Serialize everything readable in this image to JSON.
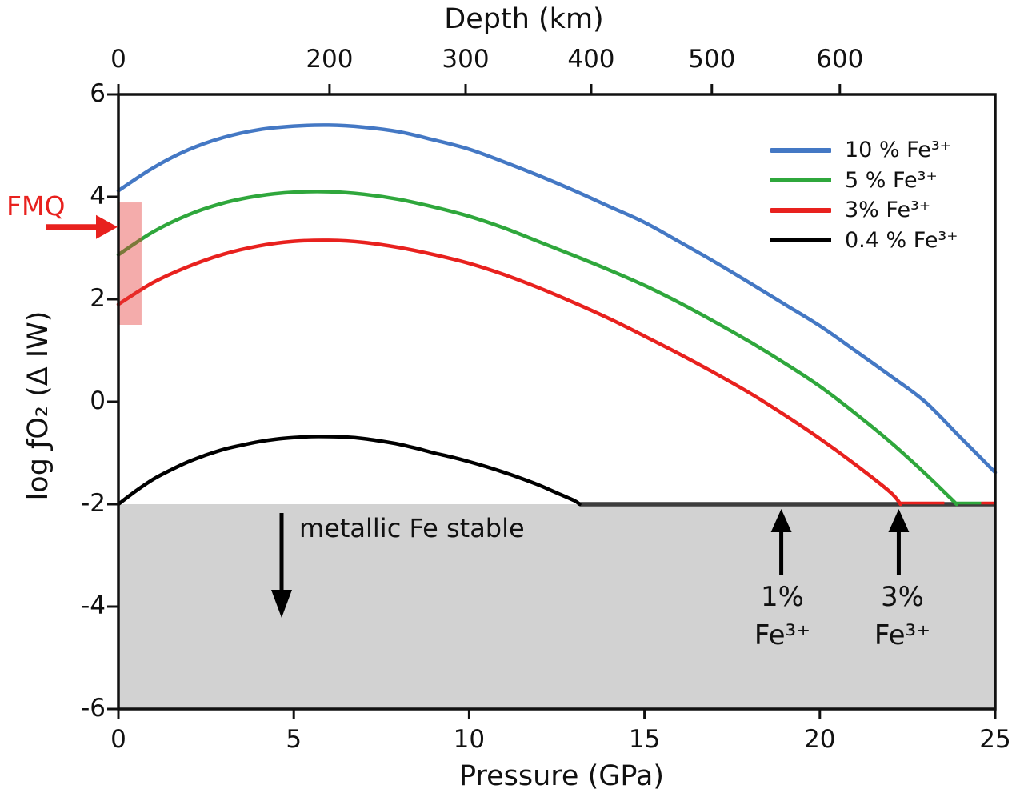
{
  "figure": {
    "background": "#ffffff",
    "axis_color": "#111111"
  },
  "annotations": {
    "fmq": {
      "label": "FMQ",
      "color": "#e8211e",
      "arrow_at_diw": 3.41
    },
    "metallic": {
      "label": "metallic Fe stable"
    },
    "arrow_1pct": {
      "line1": "1%",
      "line2": "Fe³⁺",
      "x_gpa": 18.9
    },
    "arrow_3pct": {
      "line1": "3%",
      "line2": "Fe³⁺",
      "x_gpa": 22.25
    }
  },
  "chart_data": {
    "type": "line",
    "top_axis": {
      "title": "Depth (km)",
      "ticks": [
        {
          "label": "0",
          "gpa": 0
        },
        {
          "label": "200",
          "gpa": 6.02
        },
        {
          "label": "300",
          "gpa": 9.9
        },
        {
          "label": "400",
          "gpa": 13.48
        },
        {
          "label": "500",
          "gpa": 16.92
        },
        {
          "label": "600",
          "gpa": 20.57
        }
      ]
    },
    "x_axis": {
      "title": "Pressure (GPa)",
      "range": [
        0,
        25
      ],
      "ticks": [
        "0",
        "5",
        "10",
        "15",
        "20",
        "25"
      ]
    },
    "y_axis": {
      "title": "log ƒO₂ (Δ IW)",
      "range": [
        -6,
        6
      ],
      "ticks": [
        "6",
        "4",
        "2",
        "0",
        "-2",
        "-4",
        "-6"
      ]
    },
    "series": [
      {
        "name": "10 % Fe³⁺",
        "color": "#4478c4",
        "points": [
          [
            0,
            4.12
          ],
          [
            1,
            4.57
          ],
          [
            2,
            4.92
          ],
          [
            3,
            5.16
          ],
          [
            4,
            5.31
          ],
          [
            5,
            5.38
          ],
          [
            6,
            5.4
          ],
          [
            7,
            5.36
          ],
          [
            8,
            5.27
          ],
          [
            9,
            5.11
          ],
          [
            10,
            4.93
          ],
          [
            11,
            4.68
          ],
          [
            12,
            4.41
          ],
          [
            13,
            4.12
          ],
          [
            14,
            3.81
          ],
          [
            15,
            3.5
          ],
          [
            16,
            3.12
          ],
          [
            17,
            2.73
          ],
          [
            18,
            2.32
          ],
          [
            19,
            1.9
          ],
          [
            20,
            1.48
          ],
          [
            21,
            1.0
          ],
          [
            22,
            0.51
          ],
          [
            23,
            0.0
          ],
          [
            24,
            -0.69
          ],
          [
            25,
            -1.38
          ]
        ]
      },
      {
        "name": "5 % Fe³⁺",
        "color": "#2fa73c",
        "points": [
          [
            0,
            2.87
          ],
          [
            1,
            3.32
          ],
          [
            2,
            3.65
          ],
          [
            3,
            3.88
          ],
          [
            4,
            4.02
          ],
          [
            5,
            4.09
          ],
          [
            6,
            4.1
          ],
          [
            7,
            4.05
          ],
          [
            8,
            3.95
          ],
          [
            9,
            3.8
          ],
          [
            10,
            3.62
          ],
          [
            11,
            3.39
          ],
          [
            12,
            3.12
          ],
          [
            13,
            2.85
          ],
          [
            14,
            2.57
          ],
          [
            15,
            2.27
          ],
          [
            16,
            1.93
          ],
          [
            17,
            1.56
          ],
          [
            18,
            1.17
          ],
          [
            19,
            0.75
          ],
          [
            20,
            0.3
          ],
          [
            21,
            -0.22
          ],
          [
            22,
            -0.78
          ],
          [
            23,
            -1.4
          ],
          [
            23.9,
            -2.0
          ]
        ]
      },
      {
        "name": "3% Fe³⁺",
        "color": "#e8211e",
        "points": [
          [
            0,
            1.9
          ],
          [
            1,
            2.33
          ],
          [
            2,
            2.64
          ],
          [
            3,
            2.88
          ],
          [
            4,
            3.04
          ],
          [
            5,
            3.13
          ],
          [
            6,
            3.15
          ],
          [
            7,
            3.11
          ],
          [
            8,
            3.01
          ],
          [
            9,
            2.87
          ],
          [
            10,
            2.7
          ],
          [
            11,
            2.48
          ],
          [
            12,
            2.22
          ],
          [
            13,
            1.93
          ],
          [
            14,
            1.62
          ],
          [
            15,
            1.28
          ],
          [
            16,
            0.93
          ],
          [
            17,
            0.56
          ],
          [
            18,
            0.17
          ],
          [
            19,
            -0.26
          ],
          [
            20,
            -0.72
          ],
          [
            21,
            -1.22
          ],
          [
            22,
            -1.76
          ],
          [
            22.3,
            -2.0
          ]
        ]
      },
      {
        "name": "0.4 % Fe³⁺",
        "color": "#000000",
        "points": [
          [
            0,
            -2.0
          ],
          [
            0.5,
            -1.74
          ],
          [
            1,
            -1.51
          ],
          [
            1.5,
            -1.33
          ],
          [
            2,
            -1.17
          ],
          [
            2.5,
            -1.04
          ],
          [
            3,
            -0.93
          ],
          [
            3.5,
            -0.85
          ],
          [
            4,
            -0.78
          ],
          [
            4.5,
            -0.73
          ],
          [
            5,
            -0.7
          ],
          [
            5.5,
            -0.68
          ],
          [
            6,
            -0.68
          ],
          [
            6.5,
            -0.69
          ],
          [
            7,
            -0.72
          ],
          [
            7.5,
            -0.77
          ],
          [
            8,
            -0.83
          ],
          [
            8.5,
            -0.91
          ],
          [
            9,
            -1.0
          ],
          [
            9.5,
            -1.08
          ],
          [
            10,
            -1.17
          ],
          [
            10.5,
            -1.27
          ],
          [
            11,
            -1.38
          ],
          [
            11.5,
            -1.5
          ],
          [
            12,
            -1.63
          ],
          [
            12.5,
            -1.78
          ],
          [
            13,
            -1.93
          ],
          [
            13.15,
            -2.0
          ]
        ]
      }
    ],
    "metallic_region": {
      "y_top_diw": -2,
      "fill": "#d2d2d2",
      "label": "metallic Fe stable"
    },
    "boundary_line": {
      "from_gpa": 13.15,
      "to_gpa": 25,
      "at_diw": -2,
      "color": "#3d3d3d"
    },
    "boundary_overlays": [
      {
        "color": "#e8211e",
        "from_gpa": 22.3,
        "to_gpa": 23.55
      },
      {
        "color": "#2fa73c",
        "from_gpa": 23.9,
        "to_gpa": 24.6
      },
      {
        "color": "#e8211e",
        "from_gpa": 24.6,
        "to_gpa": 25
      }
    ],
    "fmq_bar": {
      "x_gpa": [
        0,
        0.66
      ],
      "y_diw": [
        1.5,
        3.89
      ],
      "fill": "rgba(228,58,55,0.42)"
    }
  }
}
